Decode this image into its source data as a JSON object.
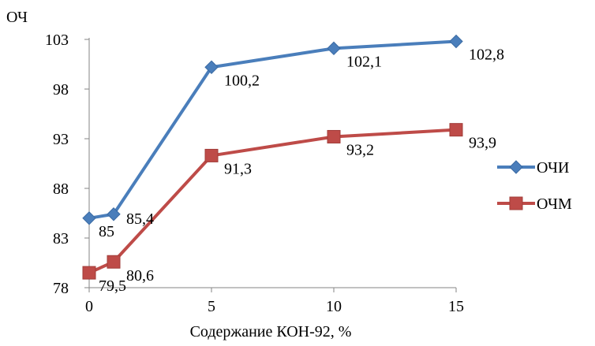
{
  "chart_data": {
    "type": "line",
    "x": [
      0,
      1,
      5,
      10,
      15
    ],
    "xticks": [
      0,
      5,
      10,
      15
    ],
    "xlabel": "Содержание КОН-92, %",
    "ylabel": "ОЧ",
    "ylim": [
      78,
      103
    ],
    "yticks": [
      78,
      83,
      88,
      93,
      98,
      103
    ],
    "xlim": [
      0,
      15
    ],
    "grid": false,
    "legend_position": "right",
    "series": [
      {
        "name": "ОЧИ",
        "marker": "diamond",
        "color": "#4a7ebb",
        "values": [
          85,
          85.4,
          100.2,
          102.1,
          102.8
        ],
        "labels": [
          "85",
          "85,4",
          "100,2",
          "102,1",
          "102,8"
        ]
      },
      {
        "name": "ОЧМ",
        "marker": "square",
        "color": "#be4b48",
        "values": [
          79.5,
          80.6,
          91.3,
          93.2,
          93.9
        ],
        "labels": [
          "79,5",
          "80,6",
          "91,3",
          "93,2",
          "93,9"
        ]
      }
    ]
  }
}
